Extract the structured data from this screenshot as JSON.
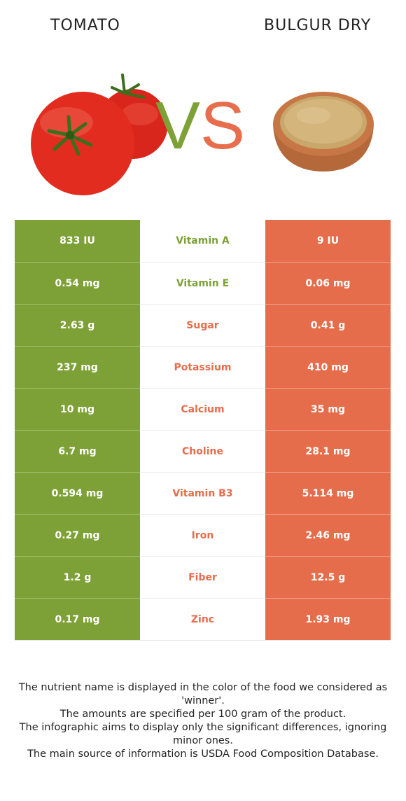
{
  "header": {
    "left_title": "TOMATO",
    "right_title": "BULGUR DRY",
    "vs_v": "V",
    "vs_s": "S"
  },
  "colors": {
    "left_accent": "#7da136",
    "right_accent": "#e56d4b"
  },
  "rows": [
    {
      "left": "833 IU",
      "name": "Vitamin A",
      "right": "9 IU",
      "winner": "left"
    },
    {
      "left": "0.54 mg",
      "name": "Vitamin E",
      "right": "0.06 mg",
      "winner": "left"
    },
    {
      "left": "2.63 g",
      "name": "Sugar",
      "right": "0.41 g",
      "winner": "right"
    },
    {
      "left": "237 mg",
      "name": "Potassium",
      "right": "410 mg",
      "winner": "right"
    },
    {
      "left": "10 mg",
      "name": "Calcium",
      "right": "35 mg",
      "winner": "right"
    },
    {
      "left": "6.7 mg",
      "name": "Choline",
      "right": "28.1 mg",
      "winner": "right"
    },
    {
      "left": "0.594 mg",
      "name": "Vitamin B3",
      "right": "5.114 mg",
      "winner": "right"
    },
    {
      "left": "0.27 mg",
      "name": "Iron",
      "right": "2.46 mg",
      "winner": "right"
    },
    {
      "left": "1.2 g",
      "name": "Fiber",
      "right": "12.5 g",
      "winner": "right"
    },
    {
      "left": "0.17 mg",
      "name": "Zinc",
      "right": "1.93 mg",
      "winner": "right"
    }
  ],
  "footer": {
    "line1": "The nutrient name is displayed in the color of the food we considered as 'winner'.",
    "line2": "The amounts are specified per 100 gram of the product.",
    "line3": "The infographic aims to display only the significant differences, ignoring minor ones.",
    "line4": "The main source of information is USDA Food Composition Database."
  }
}
